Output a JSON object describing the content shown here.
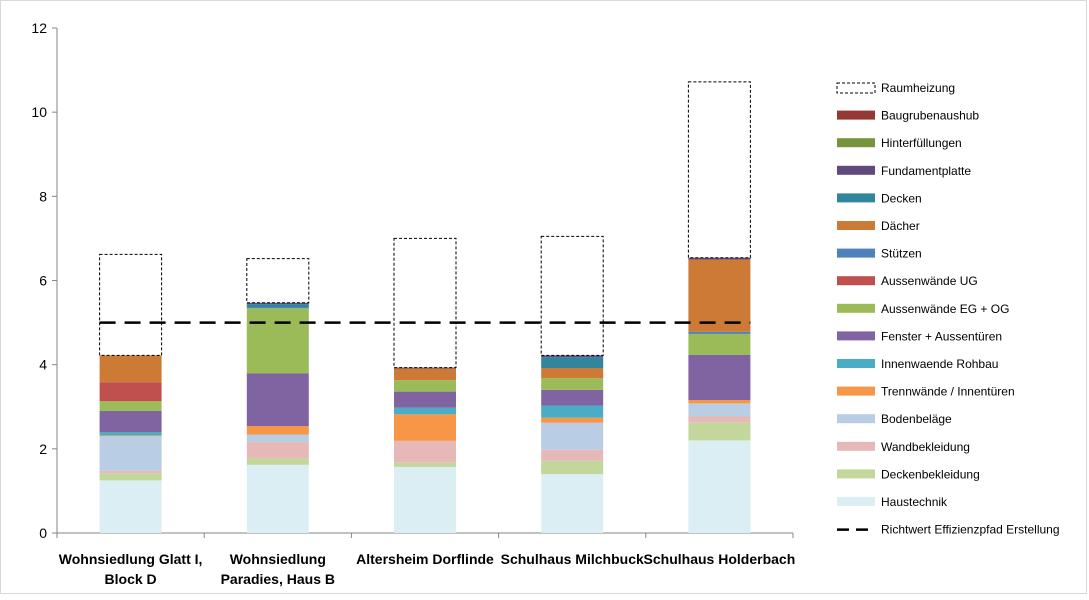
{
  "chart_data": {
    "type": "stacked-bar",
    "title": "",
    "xlabel": "",
    "ylabel": "",
    "ylim": [
      0,
      12
    ],
    "yticks": [
      0,
      2,
      4,
      6,
      8,
      10,
      12
    ],
    "grid": false,
    "legend_position": "right",
    "categories": [
      [
        "Wohnsiedlung Glatt I,",
        "Block D"
      ],
      [
        "Wohnsiedlung",
        "Paradies, Haus B"
      ],
      [
        "Altersheim Dorflinde"
      ],
      [
        "Schulhaus Milchbuck"
      ],
      [
        "Schulhaus Holderbach"
      ]
    ],
    "series": [
      {
        "name": "Haustechnik",
        "color": "#dbeef4",
        "values": [
          1.25,
          1.62,
          1.57,
          1.4,
          2.2
        ]
      },
      {
        "name": "Deckenbekleidung",
        "color": "#c3d69b",
        "values": [
          0.17,
          0.16,
          0.1,
          0.32,
          0.43
        ]
      },
      {
        "name": "Wandbekleidung",
        "color": "#e6b9b8",
        "values": [
          0.06,
          0.38,
          0.52,
          0.26,
          0.15
        ]
      },
      {
        "name": "Bodenbeläge",
        "color": "#b9cde5",
        "values": [
          0.82,
          0.18,
          0.0,
          0.64,
          0.3
        ]
      },
      {
        "name": "Trennwände / Innentüren",
        "color": "#f79646",
        "values": [
          0.02,
          0.2,
          0.63,
          0.12,
          0.08
        ]
      },
      {
        "name": "Innenwaende Rohbau",
        "color": "#4bacc6",
        "values": [
          0.08,
          0.0,
          0.16,
          0.29,
          0.0
        ]
      },
      {
        "name": "Fenster + Aussentüren",
        "color": "#8064a2",
        "values": [
          0.5,
          1.25,
          0.38,
          0.37,
          1.07
        ]
      },
      {
        "name": "Aussenwände EG + OG",
        "color": "#9bbb59",
        "values": [
          0.23,
          1.55,
          0.27,
          0.28,
          0.5
        ]
      },
      {
        "name": "Aussenwände UG",
        "color": "#c0504d",
        "values": [
          0.45,
          0.0,
          0.0,
          0.0,
          0.0
        ]
      },
      {
        "name": "Stützen",
        "color": "#4f81bd",
        "values": [
          0.0,
          0.03,
          0.0,
          0.0,
          0.05
        ]
      },
      {
        "name": "Dächer",
        "color": "#cc7a36",
        "values": [
          0.64,
          0.0,
          0.28,
          0.24,
          1.72
        ]
      },
      {
        "name": "Decken",
        "color": "#31859c",
        "values": [
          0.0,
          0.07,
          0.0,
          0.26,
          0.0
        ]
      },
      {
        "name": "Fundamentplatte",
        "color": "#604a7b",
        "values": [
          0.0,
          0.03,
          0.02,
          0.04,
          0.04
        ]
      },
      {
        "name": "Hinterfüllungen",
        "color": "#77933c",
        "values": [
          0.0,
          0.0,
          0.0,
          0.0,
          0.0
        ]
      },
      {
        "name": "Baugrubenaushub",
        "color": "#953735",
        "values": [
          0.0,
          0.0,
          0.0,
          0.0,
          0.0
        ]
      },
      {
        "name": "Raumheizung",
        "color": "none",
        "dashed_outline": true,
        "values": [
          2.4,
          1.05,
          3.07,
          2.83,
          4.18
        ]
      }
    ],
    "reference_line": {
      "name": "Richtwert Effizienzpfad Erstellung",
      "value": 5,
      "style": "dashed",
      "color": "#000000"
    },
    "legend_order": [
      "Raumheizung",
      "Baugrubenaushub",
      "Hinterfüllungen",
      "Fundamentplatte",
      "Decken",
      "Dächer",
      "Stützen",
      "Aussenwände UG",
      "Aussenwände EG + OG",
      "Fenster + Aussentüren",
      "Innenwaende Rohbau",
      "Trennwände / Innentüren",
      "Bodenbeläge",
      "Wandbekleidung",
      "Deckenbekleidung",
      "Haustechnik",
      "Richtwert Effizienzpfad Erstellung"
    ]
  }
}
